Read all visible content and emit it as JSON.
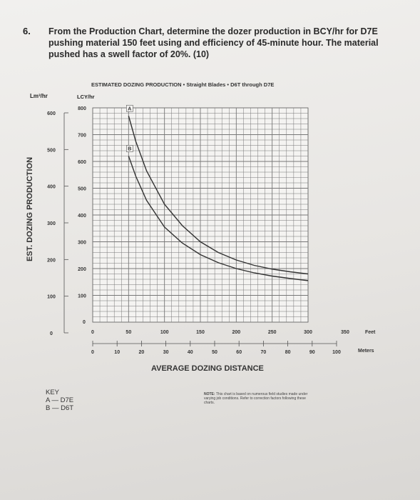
{
  "question": {
    "number": "6.",
    "text": "From the Production Chart, determine the dozer production in BCY/hr for D7E pushing material 150 feet using and efficiency of 45-minute hour. The material pushed has a swell factor of 20%. (10)"
  },
  "chart_data": {
    "type": "line",
    "title": "ESTIMATED DOZING PRODUCTION • Straight Blades • D6T through D7E",
    "ylabel": "EST. DOZING PRODUCTION",
    "ylabel_units_left": "Lm³/hr",
    "ylabel_units_right": "LCY/hr",
    "xlabel": "AVERAGE DOZING DISTANCE",
    "x_units_feet": "Feet",
    "x_units_meters": "Meters",
    "ylim": [
      0,
      800
    ],
    "xlim": [
      0,
      350
    ],
    "grid": true,
    "y_ticks_lcy": [
      "0",
      "100",
      "200",
      "300",
      "400",
      "500",
      "600",
      "700",
      "800"
    ],
    "y_ticks_lm": [
      "0",
      "100",
      "200",
      "300",
      "400",
      "500",
      "600"
    ],
    "x_ticks_feet": [
      "0",
      "50",
      "100",
      "150",
      "200",
      "250",
      "300",
      "350"
    ],
    "x_ticks_meters": [
      "0",
      "10",
      "20",
      "30",
      "40",
      "50",
      "60",
      "70",
      "80",
      "90",
      "100"
    ],
    "series": [
      {
        "name": "A",
        "x": [
          50,
          60,
          75,
          100,
          125,
          150,
          175,
          200,
          225,
          250,
          275,
          300
        ],
        "y": [
          770,
          675,
          565,
          440,
          360,
          300,
          260,
          232,
          212,
          198,
          188,
          180
        ]
      },
      {
        "name": "B",
        "x": [
          50,
          60,
          75,
          100,
          125,
          150,
          175,
          200,
          225,
          250,
          275,
          300
        ],
        "y": [
          620,
          545,
          455,
          355,
          295,
          252,
          222,
          200,
          184,
          172,
          163,
          155
        ]
      }
    ]
  },
  "key": {
    "title": "KEY",
    "items": [
      "A — D7E",
      "B — D6T"
    ]
  },
  "note": {
    "label": "NOTE:",
    "text": "This chart is based on numerous field studies made under varying job conditions. Refer to correction factors following these charts."
  }
}
